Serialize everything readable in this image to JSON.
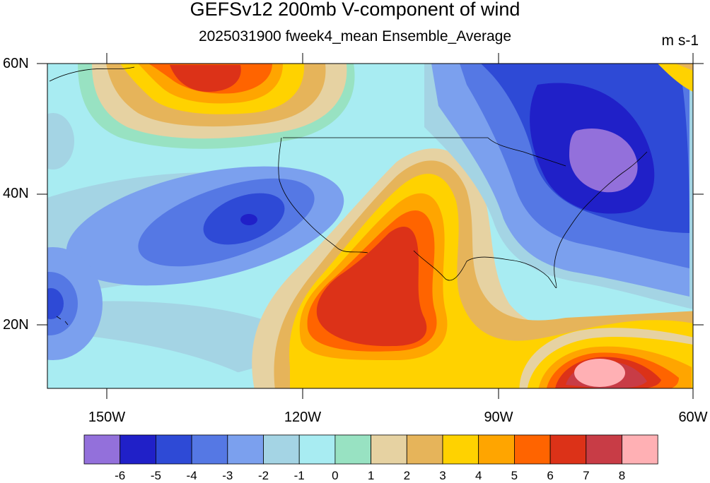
{
  "title": "GEFSv12 200mb V-component of wind",
  "subtitle": "2025031900 fweek4_mean Ensemble_Average",
  "units": "m s-1",
  "lat_labels": [
    "60N",
    "40N",
    "20N"
  ],
  "lon_labels": [
    "150W",
    "120W",
    "90W",
    "60W"
  ],
  "colorbar": {
    "levels": [
      "-6",
      "-5",
      "-4",
      "-3",
      "-2",
      "-1",
      "0",
      "1",
      "2",
      "3",
      "4",
      "5",
      "6",
      "7",
      "8"
    ],
    "colors": [
      "#9370DB",
      "#2020C8",
      "#2E4AD6",
      "#5578E4",
      "#7BA0EE",
      "#A4D4E4",
      "#A8ECF2",
      "#98E2C2",
      "#E6D2A2",
      "#E6B45A",
      "#FFD200",
      "#FFA500",
      "#FF6400",
      "#DC3218",
      "#C83C46",
      "#FFB0B4"
    ]
  },
  "map": {
    "region": "North America / Eastern Pacific",
    "lat_range": [
      10,
      60
    ],
    "lon_range": [
      -160,
      -60
    ],
    "field": "200mb meridional wind ensemble mean"
  }
}
